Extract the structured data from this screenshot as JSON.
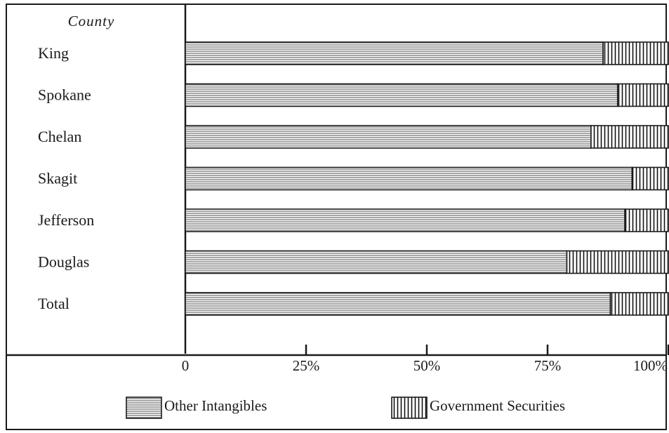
{
  "chart_data": {
    "type": "bar",
    "orientation": "horizontal",
    "stacked": true,
    "percent": true,
    "category_header": "County",
    "categories": [
      "King",
      "Spokane",
      "Chelan",
      "Skagit",
      "Jefferson",
      "Douglas",
      "Total"
    ],
    "series": [
      {
        "name": "Other Intangibles",
        "pattern": "horizontal-hatch",
        "values": [
          86.5,
          89.5,
          84,
          92.5,
          91,
          79,
          88
        ]
      },
      {
        "name": "Government Securities",
        "pattern": "vertical-hatch",
        "values": [
          13.5,
          10.5,
          16,
          7.5,
          9,
          21,
          12
        ]
      }
    ],
    "xlim": [
      0,
      100
    ],
    "x_ticks": [
      {
        "value": 0,
        "label": "0"
      },
      {
        "value": 25,
        "label": "25%"
      },
      {
        "value": 50,
        "label": "50%"
      },
      {
        "value": 75,
        "label": "75%"
      },
      {
        "value": 100,
        "label": "100%"
      }
    ],
    "legend_position": "bottom",
    "grid": false,
    "colors": {
      "ink": "#1a1a1a",
      "background": "#ffffff"
    }
  }
}
